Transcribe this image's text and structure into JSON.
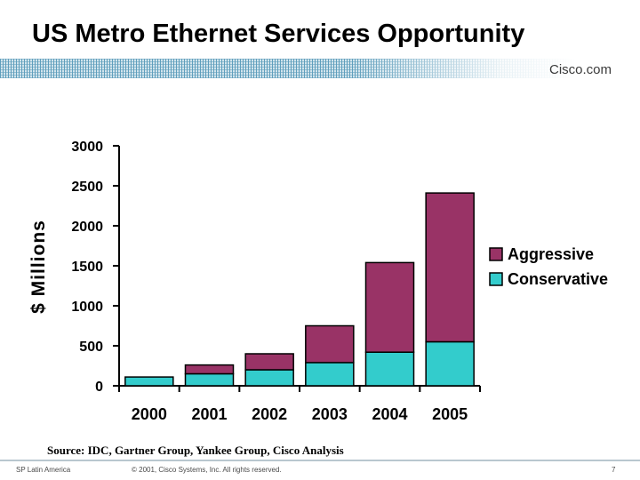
{
  "header": {
    "title": "US Metro Ethernet Services Opportunity",
    "brand": "Cisco.com"
  },
  "chart_data": {
    "type": "bar",
    "stacked": true,
    "categories": [
      "2000",
      "2001",
      "2002",
      "2003",
      "2004",
      "2005"
    ],
    "series": [
      {
        "name": "Conservative",
        "values": [
          110,
          150,
          200,
          290,
          420,
          550
        ]
      },
      {
        "name": "Aggressive",
        "values": [
          0,
          110,
          200,
          460,
          1120,
          1860
        ]
      }
    ],
    "ylabel": "$ Millions",
    "xlabel": "",
    "ylim": [
      0,
      3000
    ],
    "yticks": [
      0,
      500,
      1000,
      1500,
      2000,
      2500,
      3000
    ],
    "legend": [
      "Aggressive",
      "Conservative"
    ],
    "legend_position": "right",
    "colors": {
      "Aggressive": "#993366",
      "Conservative": "#33cccc"
    }
  },
  "source": "Source: IDC, Gartner Group, Yankee Group, Cisco Analysis",
  "footer": {
    "left": "SP Latin America",
    "center": "© 2001, Cisco Systems, Inc. All rights reserved.",
    "page": "7"
  }
}
